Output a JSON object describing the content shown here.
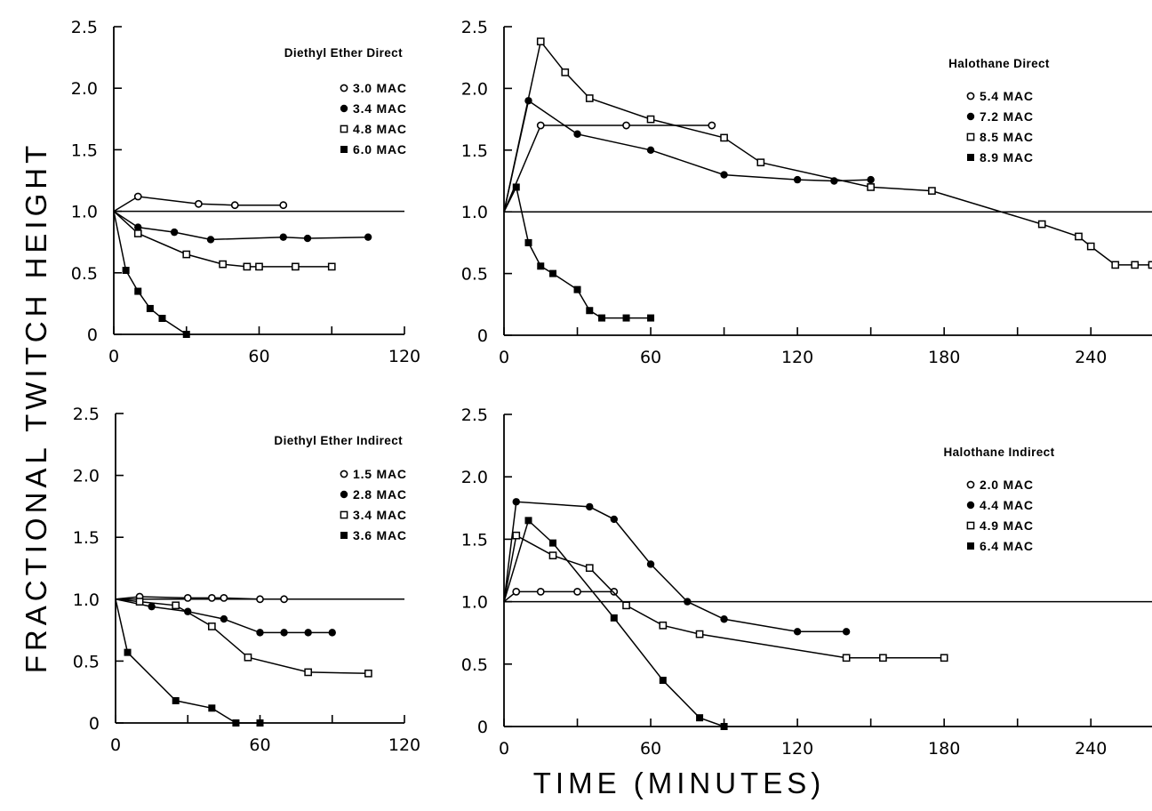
{
  "figure": {
    "ylabel": "FRACTIONAL TWITCH HEIGHT",
    "xlabel": "TIME (MINUTES)"
  },
  "chart_data": [
    {
      "type": "line",
      "title": "Diethyl Ether Direct",
      "xlim": [
        0,
        120
      ],
      "ylim": [
        0,
        2.5
      ],
      "x_ticks": [
        "0",
        "60",
        "120"
      ],
      "y_ticks": [
        "0",
        "0.5",
        "1.0",
        "1.5",
        "2.0",
        "2.5"
      ],
      "reference_line_y": 1.0,
      "legend_position": "top-right",
      "series": [
        {
          "name": "3.0 MAC",
          "marker": "open-circle",
          "x": [
            0,
            10,
            35,
            50,
            70
          ],
          "y": [
            1.0,
            1.12,
            1.06,
            1.05,
            1.05
          ]
        },
        {
          "name": "3.4 MAC",
          "marker": "filled-circle",
          "x": [
            0,
            10,
            25,
            40,
            70,
            80,
            105
          ],
          "y": [
            1.0,
            0.87,
            0.83,
            0.77,
            0.79,
            0.78,
            0.79
          ]
        },
        {
          "name": "4.8 MAC",
          "marker": "open-square",
          "x": [
            0,
            10,
            30,
            45,
            55,
            60,
            75,
            90
          ],
          "y": [
            1.0,
            0.82,
            0.65,
            0.57,
            0.55,
            0.55,
            0.55,
            0.55
          ]
        },
        {
          "name": "6.0 MAC",
          "marker": "filled-square",
          "x": [
            0,
            5,
            10,
            15,
            20,
            30
          ],
          "y": [
            1.0,
            0.52,
            0.35,
            0.21,
            0.13,
            0.0
          ]
        }
      ]
    },
    {
      "type": "line",
      "title": "Halothane Direct",
      "xlim": [
        0,
        265
      ],
      "ylim": [
        0,
        2.5
      ],
      "x_ticks": [
        "0",
        "60",
        "120",
        "180",
        "240"
      ],
      "y_ticks": [
        "0",
        "0.5",
        "1.0",
        "1.5",
        "2.0",
        "2.5"
      ],
      "reference_line_y": 1.0,
      "legend_position": "top-right",
      "series": [
        {
          "name": "5.4 MAC",
          "marker": "open-circle",
          "x": [
            0,
            15,
            50,
            85
          ],
          "y": [
            1.0,
            1.7,
            1.7,
            1.7
          ]
        },
        {
          "name": "7.2 MAC",
          "marker": "filled-circle",
          "x": [
            0,
            10,
            30,
            60,
            90,
            120,
            135,
            150
          ],
          "y": [
            1.0,
            1.9,
            1.63,
            1.5,
            1.3,
            1.26,
            1.25,
            1.26
          ]
        },
        {
          "name": "8.5 MAC",
          "marker": "open-square",
          "x": [
            0,
            15,
            25,
            35,
            60,
            90,
            105,
            150,
            175,
            220,
            235,
            240,
            250,
            258,
            265
          ],
          "y": [
            1.0,
            2.38,
            2.13,
            1.92,
            1.75,
            1.6,
            1.4,
            1.2,
            1.17,
            0.9,
            0.8,
            0.72,
            0.57,
            0.57,
            0.57
          ]
        },
        {
          "name": "8.9 MAC",
          "marker": "filled-square",
          "x": [
            0,
            5,
            10,
            15,
            20,
            30,
            35,
            40,
            50,
            60
          ],
          "y": [
            1.0,
            1.2,
            0.75,
            0.56,
            0.5,
            0.37,
            0.2,
            0.14,
            0.14,
            0.14
          ]
        }
      ]
    },
    {
      "type": "line",
      "title": "Diethyl Ether Indirect",
      "xlim": [
        0,
        120
      ],
      "ylim": [
        0,
        2.5
      ],
      "x_ticks": [
        "0",
        "60",
        "120"
      ],
      "y_ticks": [
        "0",
        "0.5",
        "1.0",
        "1.5",
        "2.0",
        "2.5"
      ],
      "reference_line_y": 1.0,
      "legend_position": "top-right",
      "series": [
        {
          "name": "1.5 MAC",
          "marker": "open-circle",
          "x": [
            0,
            10,
            30,
            40,
            45,
            60,
            70
          ],
          "y": [
            1.0,
            1.02,
            1.01,
            1.01,
            1.01,
            1.0,
            1.0
          ]
        },
        {
          "name": "2.8 MAC",
          "marker": "filled-circle",
          "x": [
            0,
            15,
            30,
            45,
            60,
            70,
            80,
            90
          ],
          "y": [
            1.0,
            0.94,
            0.9,
            0.84,
            0.73,
            0.73,
            0.73,
            0.73
          ]
        },
        {
          "name": "3.4 MAC",
          "marker": "open-square",
          "x": [
            0,
            10,
            25,
            40,
            55,
            80,
            105
          ],
          "y": [
            1.0,
            0.98,
            0.95,
            0.78,
            0.53,
            0.41,
            0.4
          ]
        },
        {
          "name": "3.6 MAC",
          "marker": "filled-square",
          "x": [
            0,
            5,
            25,
            40,
            50,
            60
          ],
          "y": [
            1.0,
            0.57,
            0.18,
            0.12,
            0.0,
            0.0
          ]
        }
      ]
    },
    {
      "type": "line",
      "title": "Halothane Indirect",
      "xlim": [
        0,
        265
      ],
      "ylim": [
        0,
        2.5
      ],
      "x_ticks": [
        "0",
        "60",
        "120",
        "180",
        "240"
      ],
      "y_ticks": [
        "0",
        "0.5",
        "1.0",
        "1.5",
        "2.0",
        "2.5"
      ],
      "reference_line_y": 1.0,
      "legend_position": "top-right",
      "series": [
        {
          "name": "2.0 MAC",
          "marker": "open-circle",
          "x": [
            0,
            5,
            15,
            30,
            45
          ],
          "y": [
            1.0,
            1.08,
            1.08,
            1.08,
            1.08
          ]
        },
        {
          "name": "4.4 MAC",
          "marker": "filled-circle",
          "x": [
            0,
            5,
            35,
            45,
            60,
            75,
            90,
            120,
            140
          ],
          "y": [
            1.0,
            1.8,
            1.76,
            1.66,
            1.3,
            1.0,
            0.86,
            0.76,
            0.76
          ]
        },
        {
          "name": "4.9 MAC",
          "marker": "open-square",
          "x": [
            0,
            5,
            20,
            35,
            50,
            65,
            80,
            140,
            155,
            180
          ],
          "y": [
            1.0,
            1.53,
            1.37,
            1.27,
            0.97,
            0.81,
            0.74,
            0.55,
            0.55,
            0.55
          ]
        },
        {
          "name": "6.4 MAC",
          "marker": "filled-square",
          "x": [
            0,
            10,
            20,
            45,
            65,
            80,
            90
          ],
          "y": [
            1.0,
            1.65,
            1.47,
            0.87,
            0.37,
            0.07,
            0.0
          ]
        }
      ]
    }
  ]
}
